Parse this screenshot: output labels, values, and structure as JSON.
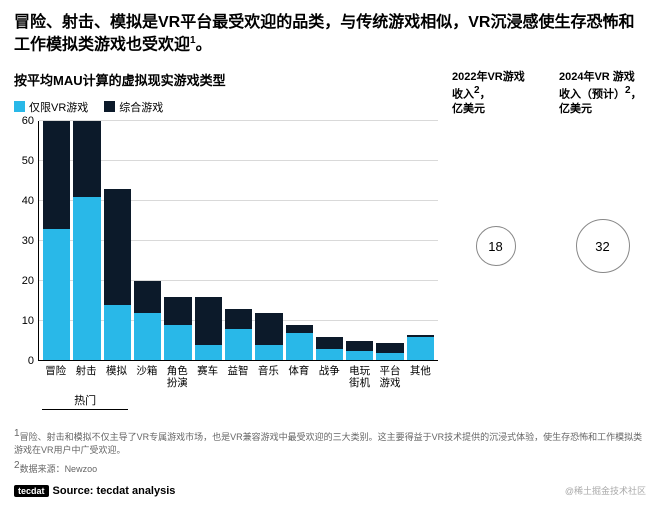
{
  "title_part1": "冒险、射击、模拟是VR平台最受欢迎的品类，与传统游戏相似，VR沉浸感使生存恐怖和工作模拟类游戏也受欢迎",
  "title_sup": "1",
  "title_end": "。",
  "subtitle": "按平均MAU计算的虚拟现实游戏类型",
  "legend": {
    "vr_only": "仅限VR游戏",
    "mixed": "综合游戏"
  },
  "colors": {
    "vr_only": "#29b8e8",
    "mixed": "#0c1a2a",
    "axis": "#000000",
    "grid": "#d9d9d9",
    "text": "#000000"
  },
  "chart": {
    "ymax": 60,
    "ytick_step": 10,
    "categories": [
      "冒险",
      "射击",
      "模拟",
      "沙箱",
      "角色\n扮演",
      "赛车",
      "益智",
      "音乐",
      "体育",
      "战争",
      "电玩\n街机",
      "平台\n游戏",
      "其他"
    ],
    "vr_only_values": [
      33,
      41,
      14,
      12,
      9,
      4,
      8,
      4,
      7,
      3,
      2.5,
      2,
      6
    ],
    "mixed_values": [
      27,
      19,
      29,
      8,
      7,
      12,
      5,
      8,
      2,
      3,
      2.5,
      2.5,
      0.5
    ],
    "hot_label": "热门",
    "hot_span_cols": 3
  },
  "revenue_2022": {
    "title_l1": "2022年VR游戏",
    "title_l2": "收入",
    "sup": "2",
    "title_l3": "，",
    "unit": "亿美元",
    "value": "18",
    "circle_d": 40
  },
  "revenue_2024": {
    "title_l1": "2024年VR 游戏",
    "title_l2": "收入（预计）",
    "sup": "2",
    "title_l3": "，",
    "unit": "亿美元",
    "value": "32",
    "circle_d": 54
  },
  "footnote1_sup": "1",
  "footnote1": "冒险、射击和模拟不仅主导了VR专属游戏市场，也是VR兼容游戏中最受欢迎的三大类别。这主要得益于VR技术提供的沉浸式体验，使生存恐怖和工作模拟类游戏在VR用户中广受欢迎。",
  "footnote2_sup": "2",
  "footnote2": "数据来源：Newzoo",
  "source_badge": "tecdat",
  "source": "Source: tecdat analysis",
  "credit": "@稀土掘金技术社区"
}
